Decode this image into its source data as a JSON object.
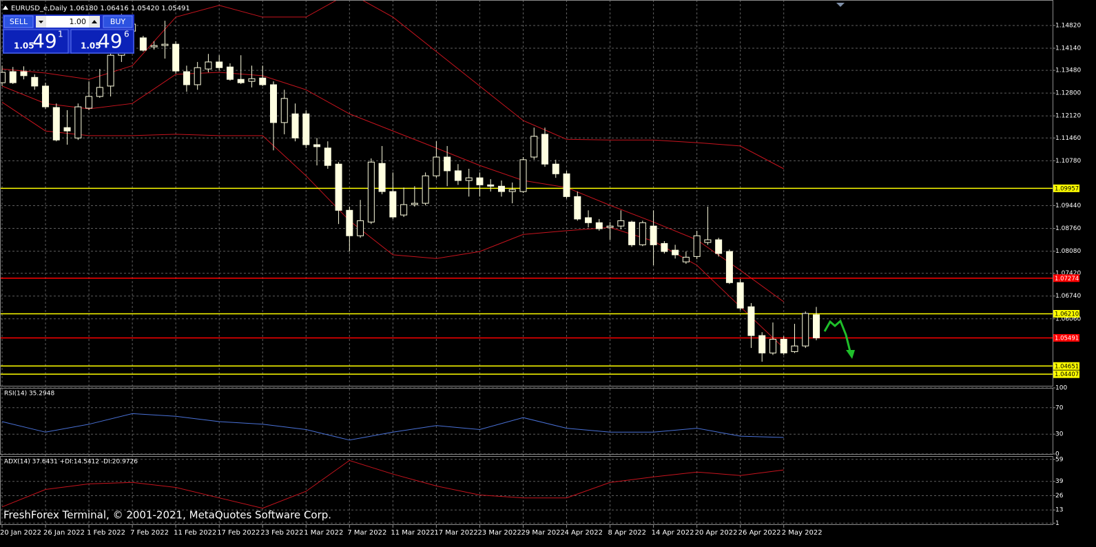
{
  "header": {
    "symbol": "EURUSD_e,Daily",
    "ohlc": [
      "1.06180",
      "1.06416",
      "1.05420",
      "1.05491"
    ]
  },
  "trade_panel": {
    "sell": "SELL",
    "buy": "BUY",
    "lots": "1.00",
    "bid": {
      "base": "1.05",
      "big": "49",
      "point": "1"
    },
    "ask": {
      "base": "1.05",
      "big": "49",
      "point": "6"
    }
  },
  "footer": "FreshForex Terminal, © 2001-2021, MetaQuotes Software Corp.",
  "chart_data": [
    {
      "type": "candlestick",
      "categories": [
        "20 Jan 2022",
        null,
        null,
        null,
        "26 Jan 2022",
        null,
        null,
        null,
        "1 Feb 2022",
        null,
        null,
        null,
        "7 Feb 2022",
        null,
        null,
        null,
        "11 Feb 2022",
        null,
        null,
        null,
        "17 Feb 2022",
        null,
        null,
        null,
        "23 Feb 2022",
        null,
        null,
        null,
        "1 Mar 2022",
        null,
        null,
        null,
        "7 Mar 2022",
        null,
        null,
        null,
        "11 Mar 2022",
        null,
        null,
        null,
        "17 Mar 2022",
        null,
        null,
        null,
        "23 Mar 2022",
        null,
        null,
        null,
        "29 Mar 2022",
        null,
        null,
        null,
        "4 Apr 2022",
        null,
        null,
        null,
        "8 Apr 2022",
        null,
        null,
        null,
        "14 Apr 2022",
        null,
        null,
        null,
        "20 Apr 2022",
        null,
        null,
        null,
        "26 Apr 2022",
        null,
        null,
        null,
        "2 May 2022",
        null,
        null,
        null
      ],
      "open": [
        1.1311,
        1.1344,
        1.1344,
        1.1327,
        1.1301,
        1.1237,
        1.1177,
        1.1146,
        1.1235,
        1.127,
        1.1301,
        1.1393,
        1.1465,
        1.1445,
        1.1418,
        1.1422,
        1.1426,
        1.1344,
        1.1305,
        1.1352,
        1.1373,
        1.1358,
        1.1321,
        1.1315,
        1.1325,
        1.1305,
        1.1192,
        1.1218,
        1.1218,
        1.1126,
        1.1116,
        1.1068,
        1.093,
        1.0854,
        1.0895,
        1.107,
        1.0986,
        1.0916,
        1.0947,
        1.0951,
        1.1033,
        1.1089,
        1.1048,
        1.1019,
        1.1027,
        1.1006,
        1.1002,
        1.0986,
        1.0986,
        1.1089,
        1.1157,
        1.1068,
        1.1039,
        1.0971,
        1.0908,
        1.0893,
        1.0879,
        1.0883,
        1.0895,
        1.0827,
        1.0883,
        1.0831,
        1.0811,
        1.0776,
        1.0792,
        1.0834,
        1.0842,
        1.0807,
        1.0714,
        1.0642,
        1.0556,
        1.0504,
        1.0545,
        1.0508,
        1.0525,
        1.0618
      ],
      "high": [
        1.1362,
        1.1358,
        1.136,
        1.1336,
        1.1311,
        1.1249,
        1.1229,
        1.1249,
        1.1315,
        1.1352,
        1.1455,
        1.1517,
        1.15,
        1.1451,
        1.1435,
        1.1496,
        1.1435,
        1.1362,
        1.1373,
        1.1397,
        1.1393,
        1.1369,
        1.1393,
        1.1362,
        1.1362,
        1.1315,
        1.129,
        1.1249,
        1.1229,
        1.1146,
        1.1136,
        1.1074,
        1.0941,
        1.0961,
        1.1085,
        1.1122,
        1.1043,
        1.0998,
        1.1002,
        1.1043,
        1.1136,
        1.1122,
        1.1068,
        1.1054,
        1.1043,
        1.1023,
        1.1019,
        1.1013,
        1.1089,
        1.1177,
        1.1177,
        1.1081,
        1.1048,
        1.0986,
        1.093,
        1.0904,
        1.0895,
        1.093,
        1.0899,
        1.0899,
        1.093,
        1.0838,
        1.0827,
        1.0807,
        1.0869,
        1.0941,
        1.0848,
        1.0813,
        1.0725,
        1.0653,
        1.0566,
        1.0595,
        1.0554,
        1.0591,
        1.0628,
        1.06416
      ],
      "low": [
        1.1301,
        1.1307,
        1.1321,
        1.129,
        1.1233,
        1.1136,
        1.1126,
        1.114,
        1.1229,
        1.1266,
        1.127,
        1.1373,
        1.1445,
        1.1404,
        1.141,
        1.1383,
        1.1338,
        1.1284,
        1.129,
        1.1342,
        1.1348,
        1.1317,
        1.1307,
        1.1297,
        1.1301,
        1.1109,
        1.1157,
        1.1136,
        1.1116,
        1.1064,
        1.1054,
        1.0889,
        1.0807,
        1.0848,
        1.0889,
        1.0978,
        1.0904,
        1.091,
        1.0941,
        1.0945,
        1.1027,
        1.1002,
        1.1006,
        1.0971,
        1.0971,
        1.0986,
        1.0971,
        1.0951,
        1.0982,
        1.1081,
        1.106,
        1.1027,
        1.0965,
        1.0899,
        1.0879,
        1.0869,
        1.0842,
        1.0873,
        1.0821,
        1.0823,
        1.0766,
        1.0801,
        1.0786,
        1.077,
        1.0784,
        1.0827,
        1.0792,
        1.071,
        1.0632,
        1.0519,
        1.0478,
        1.0498,
        1.0498,
        1.0504,
        1.0519,
        1.0542
      ],
      "close": [
        1.1342,
        1.1311,
        1.1332,
        1.1301,
        1.1239,
        1.114,
        1.1167,
        1.1239,
        1.127,
        1.1297,
        1.1393,
        1.1465,
        1.1486,
        1.1408,
        1.1422,
        1.1426,
        1.1346,
        1.1305,
        1.1356,
        1.1373,
        1.1356,
        1.1321,
        1.1311,
        1.1323,
        1.1305,
        1.1192,
        1.1264,
        1.1146,
        1.1126,
        1.112,
        1.1064,
        1.093,
        1.0854,
        1.0899,
        1.1074,
        1.0986,
        1.091,
        1.0947,
        1.0951,
        1.1033,
        1.1089,
        1.1048,
        1.1019,
        1.1027,
        1.1006,
        1.1002,
        1.0986,
        1.0992,
        1.1081,
        1.1151,
        1.1068,
        1.1039,
        1.0971,
        1.0904,
        1.0893,
        1.0875,
        1.0883,
        1.0899,
        1.0827,
        1.0893,
        1.0827,
        1.0807,
        1.0797,
        1.079,
        1.0854,
        1.0842,
        1.0801,
        1.0714,
        1.0638,
        1.0556,
        1.0504,
        1.0545,
        1.0504,
        1.0525,
        1.0622,
        1.05491
      ],
      "color": "#ffffe0",
      "bands": [
        {
          "color": "#c8141e",
          "values": [
            1.1352,
            1.134,
            1.1321,
            1.1362,
            1.1507,
            1.1542,
            1.1507,
            1.1507,
            1.1579,
            1.1507,
            1.1404,
            1.1301,
            1.1198,
            1.1142,
            1.114,
            1.114,
            1.1132,
            1.1122,
            1.1054
          ]
        },
        {
          "color": "#c8141e",
          "values": [
            1.1301,
            1.1249,
            1.1233,
            1.1249,
            1.1336,
            1.1342,
            1.1332,
            1.129,
            1.1218,
            1.1167,
            1.1116,
            1.1064,
            1.1019,
            1.0998,
            1.0945,
            1.0895,
            1.0842,
            1.0751,
            1.0657
          ]
        },
        {
          "color": "#c8141e",
          "values": [
            1.1253,
            1.1167,
            1.1153,
            1.1153,
            1.1157,
            1.1153,
            1.1153,
            1.1033,
            1.0899,
            1.0797,
            1.0786,
            1.0807,
            1.0858,
            1.0869,
            1.0879,
            1.0838,
            1.0766,
            1.0642,
            1.0519
          ]
        }
      ],
      "levels": [
        {
          "value": 1.09957,
          "color": "#ffff00"
        },
        {
          "value": 1.07274,
          "color": "#ff0000"
        },
        {
          "value": 1.0621,
          "label": "1.06210",
          "color": "#ffff00"
        },
        {
          "value": 1.05491,
          "color": "#ff0000"
        },
        {
          "value": 1.04651,
          "color": "#ffff00"
        },
        {
          "value": 1.04407,
          "color": "#ffff00"
        }
      ],
      "ylim": [
        1.0406,
        1.1558
      ],
      "yticks": [
        {
          "value": 1.1482,
          "label": "1.14820"
        },
        {
          "value": 1.1414,
          "label": "1.14140"
        },
        {
          "value": 1.1348,
          "label": "1.13480"
        },
        {
          "value": 1.128,
          "label": "1.12800"
        },
        {
          "value": 1.1212,
          "label": "1.12120"
        },
        {
          "value": 1.1146,
          "label": "1.11460"
        },
        {
          "value": 1.1078,
          "label": "1.10780"
        },
        {
          "value": 1.0944,
          "label": "1.09440"
        },
        {
          "value": 1.0876,
          "label": "1.08760"
        },
        {
          "value": 1.0808,
          "label": "1.08080"
        },
        {
          "value": 1.0742,
          "label": "1.07420"
        },
        {
          "value": 1.0674,
          "label": "1.06740"
        },
        {
          "value": 1.0606,
          "label": "1.06060"
        }
      ],
      "grid": true
    },
    {
      "type": "line",
      "title": "RSI(14) 35.2948",
      "series": [
        {
          "color": "#4a72d8",
          "values": [
            49,
            33,
            45,
            61,
            57,
            49,
            45,
            37,
            21,
            33,
            43,
            37,
            55,
            39,
            33,
            33,
            39,
            27,
            25
          ]
        }
      ],
      "ylim": [
        0,
        100
      ],
      "yticks": [
        100,
        70,
        30,
        0
      ],
      "grid": true
    },
    {
      "type": "line",
      "title": "ADX(14) 37.6431 +DI:14.5412 -DI:20.9726",
      "series": [
        {
          "color": "#c8141e",
          "values": [
            15.8,
            31.6,
            36.7,
            38,
            33.5,
            24,
            14.6,
            30,
            58,
            45.6,
            34.8,
            26.6,
            24,
            24,
            38,
            43,
            47.5,
            44.3,
            49.4
          ]
        }
      ],
      "ylim": [
        0,
        62
      ],
      "yticks": [
        59,
        39,
        26,
        13,
        1
      ],
      "grid": true
    }
  ]
}
